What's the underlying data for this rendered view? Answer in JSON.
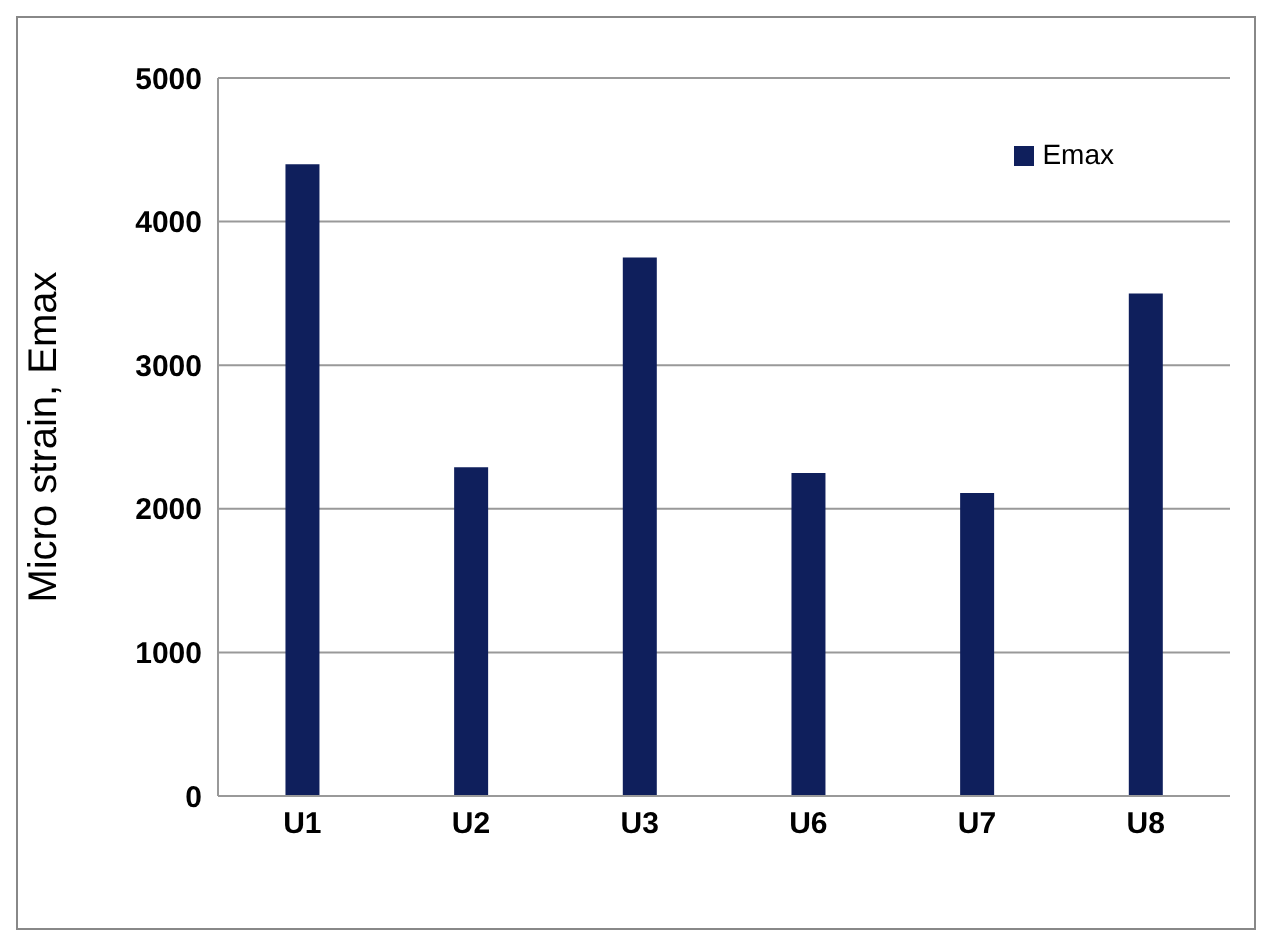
{
  "chart_data": {
    "type": "bar",
    "ylabel": "Micro strain, Emax",
    "categories": [
      "U1",
      "U2",
      "U3",
      "U6",
      "U7",
      "U8"
    ],
    "series": [
      {
        "name": "Emax",
        "color": "#0f1f5c",
        "values": [
          4400,
          2290,
          3750,
          2250,
          2110,
          3500
        ]
      }
    ],
    "ylim": [
      0,
      5000
    ],
    "yticks": [
      0,
      1000,
      2000,
      3000,
      4000,
      5000
    ],
    "grid": "y",
    "legend": "top right"
  }
}
